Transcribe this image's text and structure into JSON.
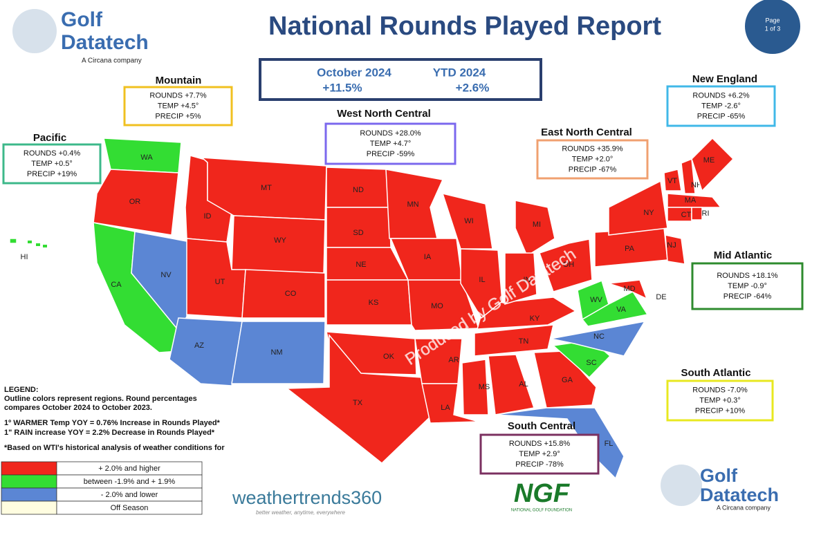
{
  "header": {
    "title": "National Rounds Played Report",
    "page": "Page",
    "page_of": "1 of 3"
  },
  "logo": {
    "name_1": "Golf",
    "name_2": "Datatech",
    "tagline": "A Circana company"
  },
  "national": {
    "month_label": "October 2024",
    "month_value": "+11.5%",
    "ytd_label": "YTD  2024",
    "ytd_value": "+2.6%"
  },
  "regions": [
    {
      "name": "Mountain",
      "rounds": "ROUNDS +7.7%",
      "temp": "TEMP +4.5°",
      "precip": "PRECIP +5%"
    },
    {
      "name": "Pacific",
      "rounds": "ROUNDS +0.4%",
      "temp": "TEMP +0.5°",
      "precip": "PRECIP +19%"
    },
    {
      "name": "West North Central",
      "rounds": "ROUNDS +28.0%",
      "temp": "TEMP +4.7°",
      "precip": "PRECIP -59%"
    },
    {
      "name": "East North Central",
      "rounds": "ROUNDS +35.9%",
      "temp": "TEMP +2.0°",
      "precip": "PRECIP -67%"
    },
    {
      "name": "New England",
      "rounds": "ROUNDS +6.2%",
      "temp": "TEMP -2.6°",
      "precip": "PRECIP -65%"
    },
    {
      "name": "Mid Atlantic",
      "rounds": "ROUNDS +18.1%",
      "temp": "TEMP -0.9°",
      "precip": "PRECIP -64%"
    },
    {
      "name": "South Atlantic",
      "rounds": "ROUNDS -7.0%",
      "temp": "TEMP +0.3°",
      "precip": "PRECIP +10%"
    },
    {
      "name": "South Central",
      "rounds": "ROUNDS +15.8%",
      "temp": "TEMP +2.9°",
      "precip": "PRECIP -78%"
    }
  ],
  "states": [
    "WA",
    "OR",
    "CA",
    "NV",
    "ID",
    "MT",
    "WY",
    "UT",
    "CO",
    "AZ",
    "NM",
    "ND",
    "SD",
    "NE",
    "KS",
    "MN",
    "IA",
    "MO",
    "OK",
    "TX",
    "AR",
    "LA",
    "MS",
    "AL",
    "GA",
    "FL",
    "SC",
    "NC",
    "TN",
    "KY",
    "WI",
    "MI",
    "IL",
    "IN",
    "OH",
    "WV",
    "VA",
    "MD",
    "DE",
    "PA",
    "NY",
    "NJ",
    "VT",
    "NH",
    "ME",
    "MA",
    "CT",
    "RI",
    "HI"
  ],
  "legend": {
    "title": "LEGEND:",
    "note": [
      "Outline colors represent regions. Round percentages",
      "compares October 2024 to October 2023."
    ],
    "rules": [
      "1º WARMER Temp YOY = 0.76% Increase in Rounds Played*",
      "1\" RAIN increase YOY = 2.2% Decrease in Rounds Played*"
    ],
    "footnote": "*Based on WTI's historical analysis of weather conditions for",
    "rows": [
      "+ 2.0% and higher",
      "between -1.9% and + 1.9%",
      "- 2.0% and lower",
      "Off Season"
    ]
  },
  "watermark": "Produced by Golf Datatech",
  "partners": {
    "weather": "weathertrends360",
    "weather_tag": "better weather, anytime, everywhere",
    "ngf": "NGF",
    "ngf_full": "NATIONAL GOLF FOUNDATION"
  }
}
